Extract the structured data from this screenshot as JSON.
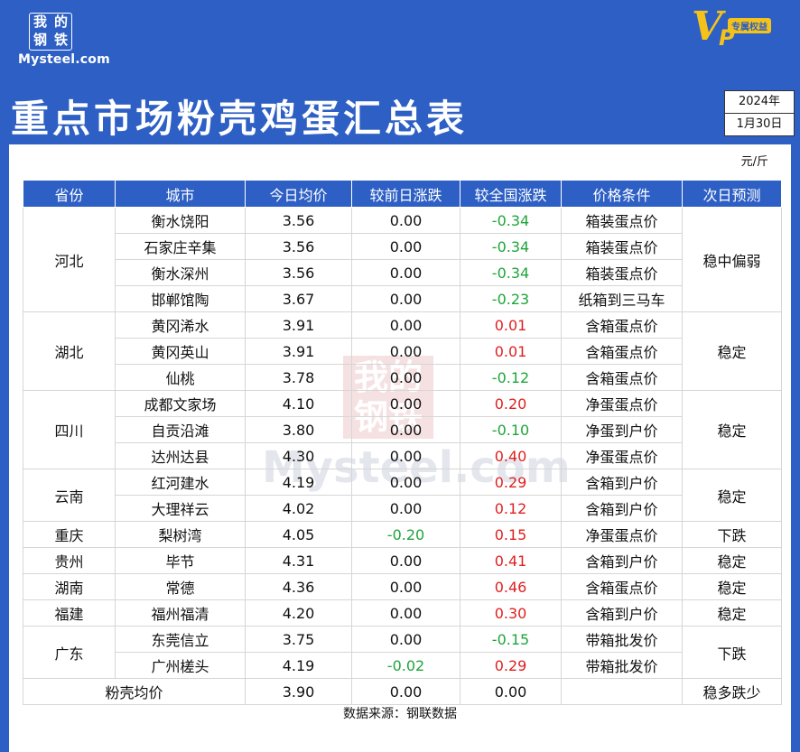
{
  "brand": {
    "seal_chars": [
      "我",
      "的",
      "钢",
      "铁"
    ],
    "wordmark": "Mysteel.com"
  },
  "vip": {
    "letter": "V",
    "suffix": "P",
    "tag": "专属权益"
  },
  "title": "重点市场粉壳鸡蛋汇总表",
  "date": {
    "year": "2024年",
    "day": "1月30日"
  },
  "unit": "元/斤",
  "headers": [
    "省份",
    "城市",
    "今日均价",
    "较前日涨跌",
    "较全国涨跌",
    "价格条件",
    "次日预测"
  ],
  "groups": [
    {
      "province": "河北",
      "forecast": "稳中偏弱",
      "rows": [
        {
          "city": "衡水饶阳",
          "price": "3.56",
          "dod": "0.00",
          "vs": "-0.34",
          "cond": "箱装蛋点价"
        },
        {
          "city": "石家庄辛集",
          "price": "3.56",
          "dod": "0.00",
          "vs": "-0.34",
          "cond": "箱装蛋点价"
        },
        {
          "city": "衡水深州",
          "price": "3.56",
          "dod": "0.00",
          "vs": "-0.34",
          "cond": "箱装蛋点价"
        },
        {
          "city": "邯郸馆陶",
          "price": "3.67",
          "dod": "0.00",
          "vs": "-0.23",
          "cond": "纸箱到三马车"
        }
      ]
    },
    {
      "province": "湖北",
      "forecast": "稳定",
      "rows": [
        {
          "city": "黄冈浠水",
          "price": "3.91",
          "dod": "0.00",
          "vs": "0.01",
          "cond": "含箱蛋点价"
        },
        {
          "city": "黄冈英山",
          "price": "3.91",
          "dod": "0.00",
          "vs": "0.01",
          "cond": "含箱蛋点价"
        },
        {
          "city": "仙桃",
          "price": "3.78",
          "dod": "0.00",
          "vs": "-0.12",
          "cond": "含箱蛋点价"
        }
      ]
    },
    {
      "province": "四川",
      "forecast": "稳定",
      "rows": [
        {
          "city": "成都文家场",
          "price": "4.10",
          "dod": "0.00",
          "vs": "0.20",
          "cond": "净蛋蛋点价"
        },
        {
          "city": "自贡沿滩",
          "price": "3.80",
          "dod": "0.00",
          "vs": "-0.10",
          "cond": "净蛋到户价"
        },
        {
          "city": "达州达县",
          "price": "4.30",
          "dod": "0.00",
          "vs": "0.40",
          "cond": "净蛋蛋点价"
        }
      ]
    },
    {
      "province": "云南",
      "forecast": "稳定",
      "rows": [
        {
          "city": "红河建水",
          "price": "4.19",
          "dod": "0.00",
          "vs": "0.29",
          "cond": "含箱到户价"
        },
        {
          "city": "大理祥云",
          "price": "4.02",
          "dod": "0.00",
          "vs": "0.12",
          "cond": "含箱到户价"
        }
      ]
    },
    {
      "province": "重庆",
      "forecast": "下跌",
      "rows": [
        {
          "city": "梨树湾",
          "price": "4.05",
          "dod": "-0.20",
          "vs": "0.15",
          "cond": "净蛋蛋点价"
        }
      ]
    },
    {
      "province": "贵州",
      "forecast": "稳定",
      "rows": [
        {
          "city": "毕节",
          "price": "4.31",
          "dod": "0.00",
          "vs": "0.41",
          "cond": "含箱到户价"
        }
      ]
    },
    {
      "province": "湖南",
      "forecast": "稳定",
      "rows": [
        {
          "city": "常德",
          "price": "4.36",
          "dod": "0.00",
          "vs": "0.46",
          "cond": "含箱蛋点价"
        }
      ]
    },
    {
      "province": "福建",
      "forecast": "稳定",
      "rows": [
        {
          "city": "福州福清",
          "price": "4.20",
          "dod": "0.00",
          "vs": "0.30",
          "cond": "含箱到户价"
        }
      ]
    },
    {
      "province": "广东",
      "forecast": "下跌",
      "rows": [
        {
          "city": "东莞信立",
          "price": "3.75",
          "dod": "0.00",
          "vs": "-0.15",
          "cond": "带箱批发价"
        },
        {
          "city": "广州槎头",
          "price": "4.19",
          "dod": "-0.02",
          "vs": "0.29",
          "cond": "带箱批发价"
        }
      ]
    }
  ],
  "average": {
    "label": "粉壳均价",
    "price": "3.90",
    "dod": "0.00",
    "vs": "0.00",
    "cond": "",
    "forecast": "稳多跌少"
  },
  "source": "数据来源：钢联数据",
  "colors": {
    "brand_blue": "#2d5fc4",
    "up": "#e02020",
    "down": "#1ea53a",
    "vip_gold": "#f5c21a"
  }
}
